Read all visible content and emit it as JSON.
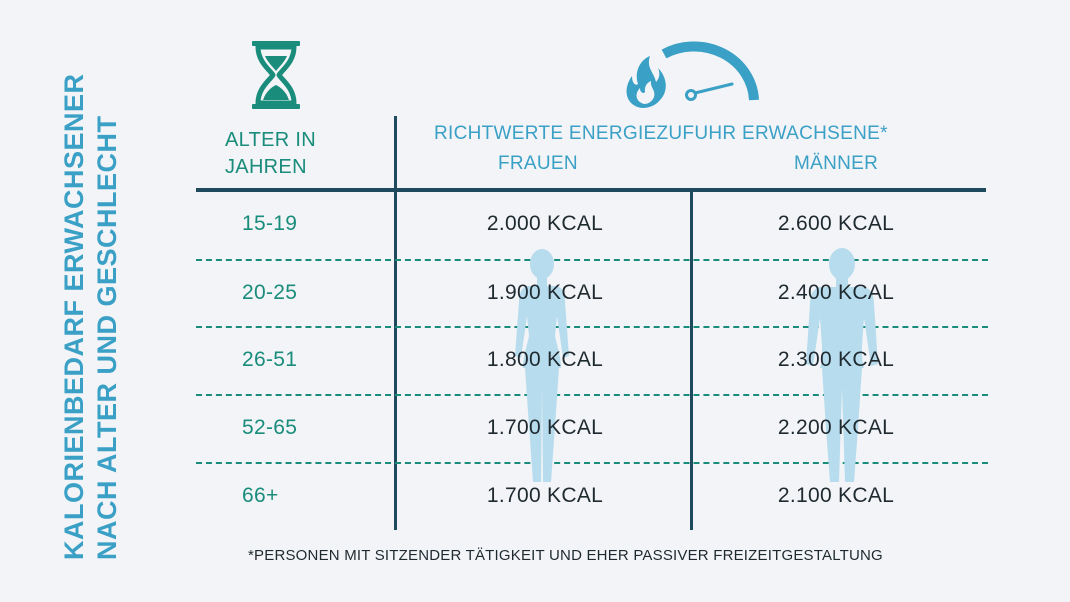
{
  "side_title": {
    "line1": "KALORIENBEDARF ERWACHSENER",
    "line2": "NACH ALTER UND GESCHLECHT"
  },
  "icons": {
    "age": "hourglass-icon",
    "energy": "flame-gauge-icon",
    "women": "female-silhouette-icon",
    "men": "male-silhouette-icon"
  },
  "colors": {
    "accent_blue": "#3aa0c6",
    "accent_teal": "#1a8c7b",
    "text_dark": "#1f2a30",
    "line_dark": "#1f4a5e",
    "silhouette": "#b7dced",
    "background": "#f2f4f7"
  },
  "table": {
    "age_header_line1": "ALTER IN",
    "age_header_line2": "JAHREN",
    "main_header": "RICHTWERTE ENERGIEZUFUHR ERWACHSENE*",
    "women_header": "FRAUEN",
    "men_header": "MÄNNER",
    "rows": [
      {
        "age": "15-19",
        "women": "2.000 KCAL",
        "men": "2.600 KCAL"
      },
      {
        "age": "20-25",
        "women": "1.900 KCAL",
        "men": "2.400 KCAL"
      },
      {
        "age": "26-51",
        "women": "1.800 KCAL",
        "men": "2.300 KCAL"
      },
      {
        "age": "52-65",
        "women": "1.700 KCAL",
        "men": "2.200 KCAL"
      },
      {
        "age": "66+",
        "women": "1.700 KCAL",
        "men": "2.100 KCAL"
      }
    ]
  },
  "footnote": "*PERSONEN MIT SITZENDER TÄTIGKEIT UND EHER PASSIVER FREIZEITGESTALTUNG"
}
